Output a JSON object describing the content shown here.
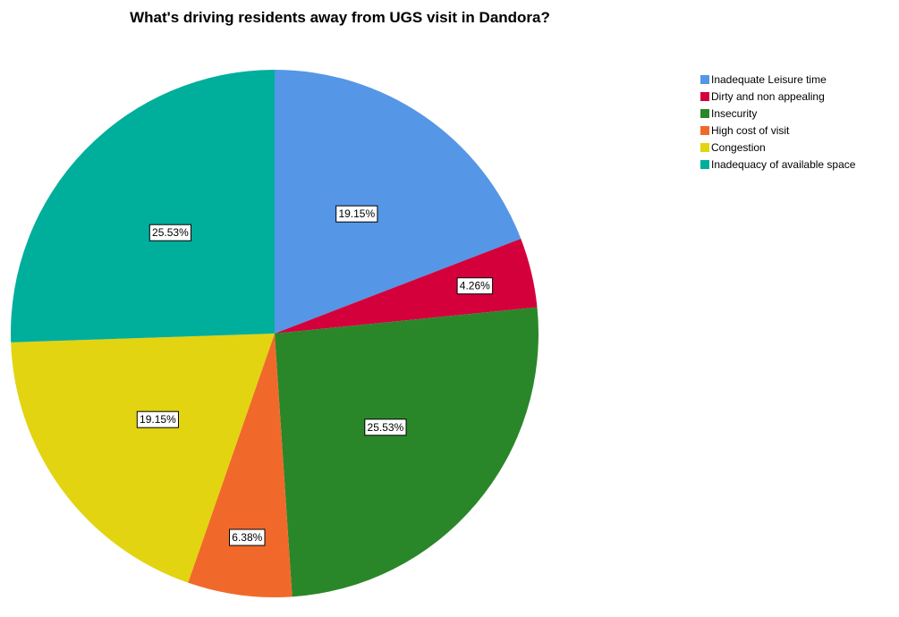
{
  "chart_data": {
    "type": "pie",
    "title": "What's driving residents away from UGS visit in Dandora?",
    "start_angle_deg": 0,
    "direction": "clockwise",
    "legend_position": "top-right",
    "slices": [
      {
        "name": "Inadequate Leisure time",
        "value": 19.15,
        "label": "19.15%",
        "color": "#5596E6"
      },
      {
        "name": "Dirty and non appealing",
        "value": 4.26,
        "label": "4.26%",
        "color": "#D4003C"
      },
      {
        "name": "Insecurity",
        "value": 25.53,
        "label": "25.53%",
        "color": "#2A8729"
      },
      {
        "name": "High cost of visit",
        "value": 6.38,
        "label": "6.38%",
        "color": "#F1692A"
      },
      {
        "name": "Congestion",
        "value": 19.15,
        "label": "19.15%",
        "color": "#E2D410"
      },
      {
        "name": "Inadequacy of available space",
        "value": 25.53,
        "label": "25.53%",
        "color": "#00AE9C"
      }
    ]
  }
}
